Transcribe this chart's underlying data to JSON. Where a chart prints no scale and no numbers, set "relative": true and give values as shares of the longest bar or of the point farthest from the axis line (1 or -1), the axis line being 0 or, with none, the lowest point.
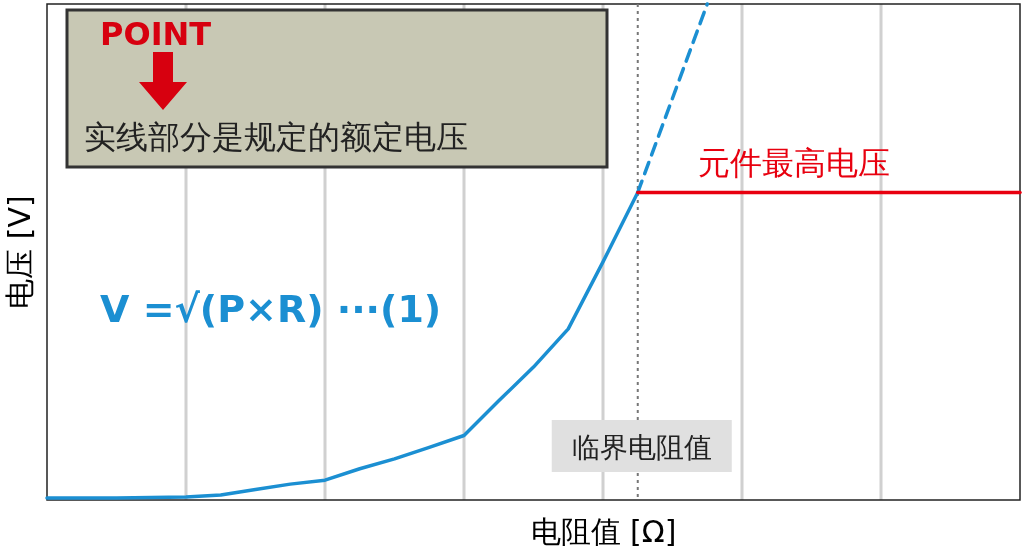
{
  "chart_data": {
    "type": "line",
    "xlabel": "电阻值 [Ω]",
    "ylabel": "电压 [V]",
    "relative": true,
    "categories": [
      null,
      null,
      null,
      null,
      null,
      null,
      null,
      null,
      null,
      null,
      null,
      null,
      null,
      null,
      null,
      null,
      null,
      null,
      null,
      null,
      null,
      null,
      null,
      null,
      null,
      null,
      null,
      null,
      null
    ],
    "grid": "x",
    "series": [
      {
        "color": "#1b8fd2",
        "line_style": "solid",
        "values": [
          0.004,
          0.004,
          0.004,
          0.005,
          0.006,
          0.01,
          0.021,
          0.032,
          0.04,
          0.063,
          0.083,
          0.106,
          0.13,
          0.2,
          0.268,
          0.345,
          0.48,
          0.62,
          null,
          null,
          null,
          null,
          null,
          null,
          null,
          null,
          null,
          null,
          null
        ]
      },
      {
        "color": "#1b8fd2",
        "line_style": "dashed",
        "values": [
          null,
          null,
          null,
          null,
          null,
          null,
          null,
          null,
          null,
          null,
          null,
          null,
          null,
          null,
          null,
          null,
          null,
          0.62,
          0.81,
          1.0,
          null,
          null,
          null,
          null,
          null,
          null,
          null,
          null,
          null
        ]
      },
      {
        "name": "元件最高电压",
        "color": "#e8000f",
        "line_style": "solid",
        "values": [
          null,
          null,
          null,
          null,
          null,
          null,
          null,
          null,
          null,
          null,
          null,
          null,
          null,
          null,
          null,
          null,
          null,
          0.62,
          0.62,
          0.62,
          0.62,
          0.62,
          0.62,
          0.62,
          0.62,
          0.62,
          0.62,
          0.62,
          0.62
        ]
      }
    ],
    "annotations": [
      "POINT",
      "实线部分是规定的额定电压",
      "V =√(P×R) ···(1)",
      "临界电阻值"
    ]
  }
}
